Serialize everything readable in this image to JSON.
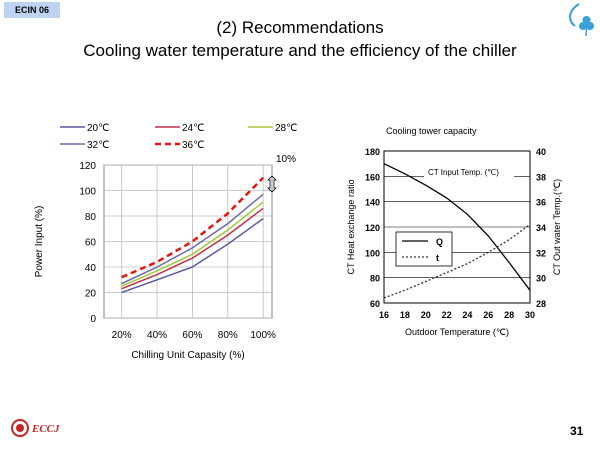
{
  "slide": {
    "tag": "ECIN 06",
    "title_line1": "(2) Recommendations",
    "title_line2": "Cooling water temperature and the efficiency of the chiller",
    "page_number": "31",
    "logo_text": "ECCJ",
    "logo_color": "#cc2222",
    "tag_color": "#bcd3f2"
  },
  "chart_data": [
    {
      "type": "line",
      "title": "",
      "xlabel": "Chilling Unit Capasity (%)",
      "ylabel": "Power Input (%)",
      "categories": [
        "20%",
        "40%",
        "60%",
        "80%",
        "100%"
      ],
      "x": [
        20,
        40,
        60,
        80,
        100
      ],
      "ylim": [
        0,
        120
      ],
      "yticks": [
        "0",
        "20",
        "40",
        "60",
        "80",
        "100",
        "120"
      ],
      "grid": true,
      "legend": "top",
      "annotation": "10%",
      "series": [
        {
          "name": "20℃",
          "color": "#5a5aa0",
          "dash": "none",
          "values": [
            20,
            30,
            40,
            58,
            78
          ]
        },
        {
          "name": "24℃",
          "color": "#c0304a",
          "dash": "none",
          "values": [
            23,
            34,
            47,
            65,
            86
          ]
        },
        {
          "name": "28℃",
          "color": "#a8c838",
          "dash": "none",
          "values": [
            25,
            37,
            50,
            69,
            91
          ]
        },
        {
          "name": "32℃",
          "color": "#6a6aa8",
          "dash": "none",
          "values": [
            27,
            40,
            55,
            74,
            97
          ]
        },
        {
          "name": "36℃",
          "color": "#ee1111",
          "dash": "6,4",
          "values": [
            32,
            44,
            60,
            82,
            110
          ]
        }
      ]
    },
    {
      "type": "line",
      "title": "Cooling tower capacity",
      "xlabel": "Outdoor Temperature (℃)",
      "ylabel": "CT Heat exchange ratio",
      "y2label": "CT Out water Temp.(℃)",
      "x": [
        16,
        18,
        20,
        22,
        24,
        26,
        28,
        30
      ],
      "xticks": [
        "16",
        "18",
        "20",
        "22",
        "24",
        "26",
        "28",
        "30"
      ],
      "ylim": [
        60,
        180
      ],
      "yticks": [
        "60",
        "80",
        "100",
        "120",
        "140",
        "160",
        "180"
      ],
      "y2lim": [
        28,
        40
      ],
      "y2ticks": [
        "28",
        "30",
        "32",
        "34",
        "36",
        "38",
        "40"
      ],
      "grid": true,
      "legend": "left-center",
      "annotation": "CT Input Temp. (℃)",
      "series": [
        {
          "name": "Q",
          "axis": "y",
          "color": "#000000",
          "dash": "none",
          "points": [
            [
              16,
              170
            ],
            [
              18,
              162
            ],
            [
              20,
              153
            ],
            [
              22,
              143
            ],
            [
              24,
              130
            ],
            [
              26,
              113
            ],
            [
              28,
              92
            ],
            [
              30,
              70
            ]
          ]
        },
        {
          "name": "t",
          "axis": "y2",
          "color": "#333333",
          "dash": "2,2",
          "points": [
            [
              16,
              28.4
            ],
            [
              18,
              29.0
            ],
            [
              20,
              29.7
            ],
            [
              22,
              30.4
            ],
            [
              24,
              31.1
            ],
            [
              26,
              32.0
            ],
            [
              28,
              33.0
            ],
            [
              30,
              34.2
            ]
          ]
        }
      ]
    }
  ]
}
